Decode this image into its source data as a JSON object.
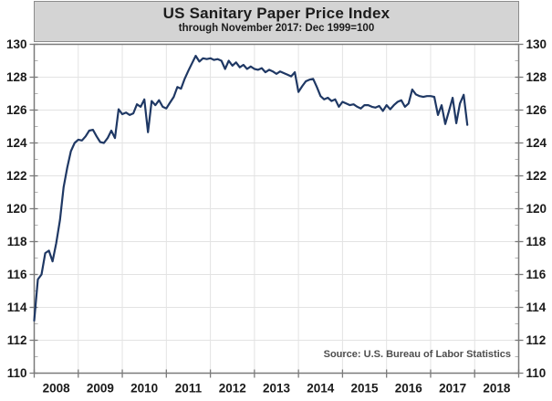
{
  "chart_data": {
    "type": "line",
    "title": "US Sanitary Paper Price Index",
    "subtitle": "through November 2017: Dec 1999=100",
    "source_note": "Source: U.S. Bureau of Labor Statistics",
    "ylim": [
      110,
      130
    ],
    "y_major_step": 2,
    "y_minor_step": 1,
    "y_tick_labels": [
      "130",
      "128",
      "126",
      "124",
      "122",
      "120",
      "118",
      "116",
      "114",
      "112",
      "110"
    ],
    "y_axis_sides": "both",
    "grid": true,
    "legend": "none",
    "x_axis": {
      "start_year": 2008,
      "end_year": 2019,
      "tick_labels": [
        "2008",
        "2009",
        "2010",
        "2011",
        "2012",
        "2013",
        "2014",
        "2015",
        "2016",
        "2017",
        "2018"
      ]
    },
    "series": [
      {
        "name": "US Sanitary Paper Price Index",
        "start": "2008-01",
        "end": "2017-11",
        "frequency": "monthly",
        "values": [
          113.2,
          115.7,
          116.0,
          117.3,
          117.45,
          116.8,
          117.9,
          119.3,
          121.3,
          122.5,
          123.5,
          124.0,
          124.2,
          124.15,
          124.4,
          124.75,
          124.8,
          124.4,
          124.05,
          124.0,
          124.3,
          124.75,
          124.3,
          126.05,
          125.75,
          125.85,
          125.7,
          125.8,
          126.35,
          126.2,
          126.65,
          124.65,
          126.55,
          126.3,
          126.6,
          126.2,
          126.1,
          126.45,
          126.8,
          127.4,
          127.3,
          127.9,
          128.4,
          128.85,
          129.3,
          128.95,
          129.15,
          129.1,
          129.15,
          129.05,
          129.1,
          129.0,
          128.5,
          129.0,
          128.7,
          128.9,
          128.6,
          128.75,
          128.5,
          128.65,
          128.5,
          128.45,
          128.55,
          128.3,
          128.45,
          128.35,
          128.2,
          128.35,
          128.25,
          128.15,
          128.05,
          128.3,
          127.1,
          127.45,
          127.75,
          127.85,
          127.9,
          127.4,
          126.85,
          126.65,
          126.75,
          126.55,
          126.65,
          126.2,
          126.5,
          126.4,
          126.3,
          126.35,
          126.2,
          126.1,
          126.3,
          126.3,
          126.2,
          126.15,
          126.25,
          125.95,
          126.3,
          126.05,
          126.3,
          126.5,
          126.6,
          126.2,
          126.4,
          127.25,
          126.95,
          126.85,
          126.8,
          126.85,
          126.85,
          126.8,
          125.7,
          126.3,
          125.15,
          125.95,
          126.75,
          125.2,
          126.4,
          126.93,
          125.1
        ]
      }
    ]
  },
  "colors": {
    "line": "#1f3864",
    "title_box_bg": "#d4d4d4",
    "title_box_border": "#8c8c8c",
    "grid": "#e3e3e3",
    "minor_tick": "#b3b3b3",
    "axis": "#7a7a7a",
    "tick_label": "#1a1a1a",
    "source_text": "#4d4d4d"
  }
}
